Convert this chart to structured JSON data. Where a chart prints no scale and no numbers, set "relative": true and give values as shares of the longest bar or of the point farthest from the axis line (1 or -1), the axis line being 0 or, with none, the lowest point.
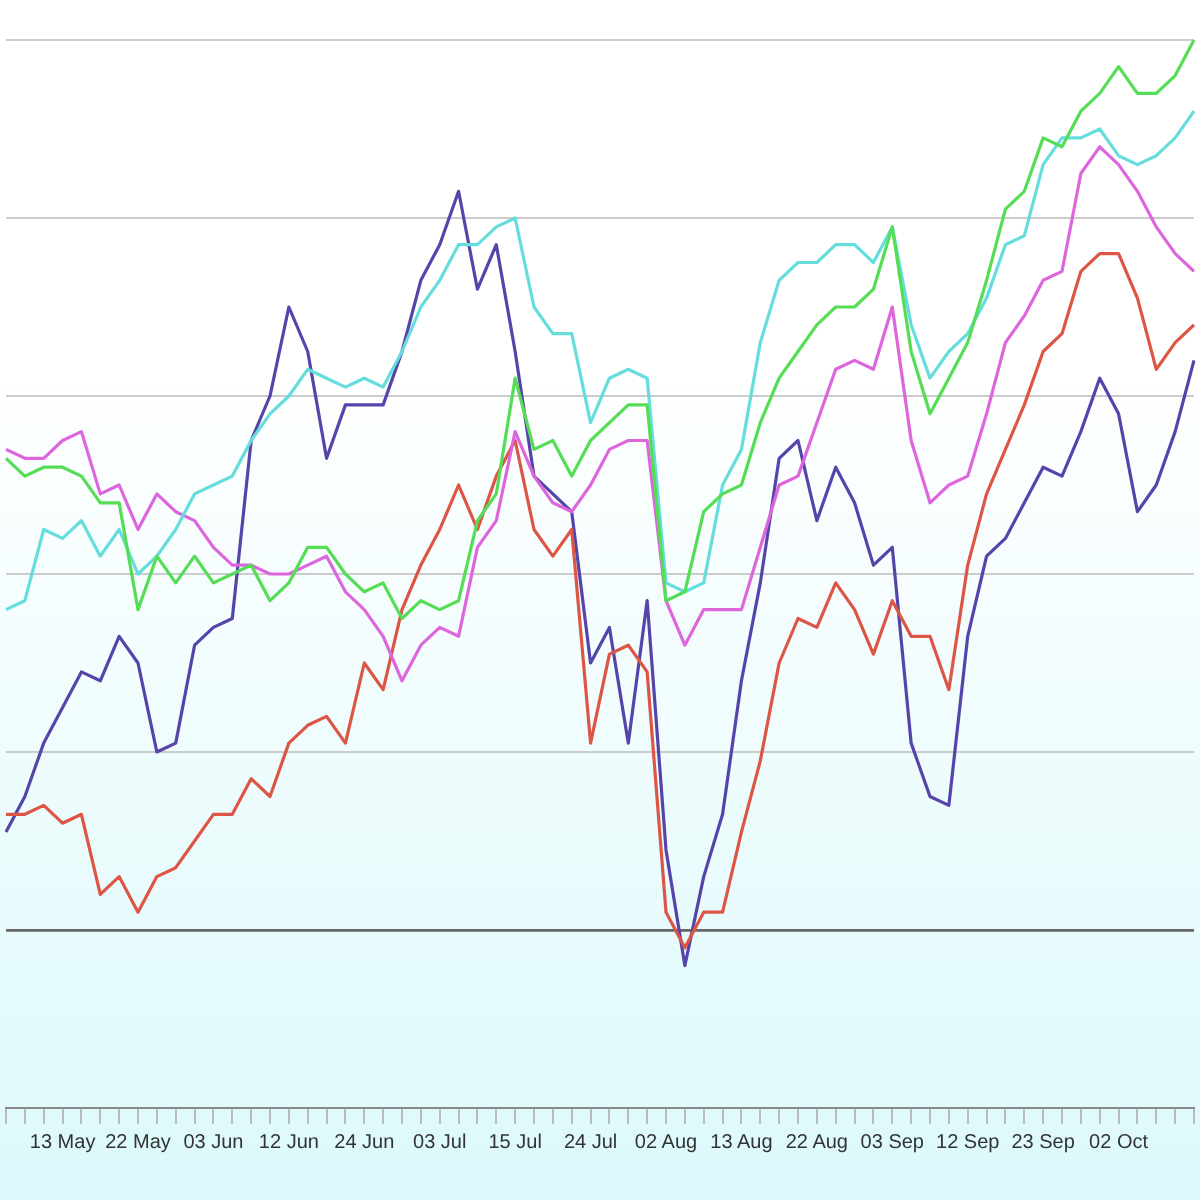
{
  "chart_data": {
    "type": "line",
    "relative": true,
    "grid": "y",
    "marker": "none",
    "categories": [
      null,
      null,
      null,
      "13 May",
      null,
      null,
      null,
      "22 May",
      null,
      null,
      null,
      "03 Jun",
      null,
      null,
      null,
      "12 Jun",
      null,
      null,
      null,
      "24 Jun",
      null,
      null,
      null,
      "03 Jul",
      null,
      null,
      null,
      "15 Jul",
      null,
      null,
      null,
      "24 Jul",
      null,
      null,
      null,
      "02 Aug",
      null,
      null,
      null,
      "13 Aug",
      null,
      null,
      null,
      "22 Aug",
      null,
      null,
      null,
      "03 Sep",
      null,
      null,
      null,
      "12 Sep",
      null,
      null,
      null,
      "23 Sep",
      null,
      null,
      null,
      "02 Oct",
      null,
      null,
      null,
      null
    ],
    "series": [
      {
        "color": "#55dd55",
        "values": [
          0.53,
          0.51,
          0.52,
          0.52,
          0.51,
          0.48,
          0.48,
          0.36,
          0.42,
          0.39,
          0.42,
          0.39,
          0.4,
          0.41,
          0.37,
          0.39,
          0.43,
          0.43,
          0.4,
          0.38,
          0.39,
          0.35,
          0.37,
          0.36,
          0.37,
          0.46,
          0.49,
          0.62,
          0.54,
          0.55,
          0.51,
          0.55,
          0.57,
          0.59,
          0.59,
          0.37,
          0.38,
          0.47,
          0.49,
          0.5,
          0.57,
          0.62,
          0.65,
          0.68,
          0.7,
          0.7,
          0.72,
          0.79,
          0.65,
          0.58,
          0.62,
          0.66,
          0.73,
          0.81,
          0.83,
          0.89,
          0.88,
          0.92,
          0.94,
          0.97,
          0.94,
          0.94,
          0.96,
          1
        ]
      },
      {
        "color": "#66dddd",
        "values": [
          0.36,
          0.37,
          0.45,
          0.44,
          0.46,
          0.42,
          0.45,
          0.4,
          0.42,
          0.45,
          0.49,
          0.5,
          0.51,
          0.55,
          0.58,
          0.6,
          0.63,
          0.62,
          0.61,
          0.62,
          0.61,
          0.65,
          0.7,
          0.73,
          0.77,
          0.77,
          0.79,
          0.8,
          0.7,
          0.67,
          0.67,
          0.57,
          0.62,
          0.63,
          0.62,
          0.39,
          0.38,
          0.39,
          0.5,
          0.54,
          0.66,
          0.73,
          0.75,
          0.75,
          0.77,
          0.77,
          0.75,
          0.79,
          0.68,
          0.62,
          0.65,
          0.67,
          0.71,
          0.77,
          0.78,
          0.86,
          0.89,
          0.89,
          0.9,
          0.87,
          0.86,
          0.87,
          0.89,
          0.92
        ]
      },
      {
        "color": "#dd66dd",
        "values": [
          0.54,
          0.53,
          0.53,
          0.55,
          0.56,
          0.49,
          0.5,
          0.45,
          0.49,
          0.47,
          0.46,
          0.43,
          0.41,
          0.41,
          0.4,
          0.4,
          0.41,
          0.42,
          0.38,
          0.36,
          0.33,
          0.28,
          0.32,
          0.34,
          0.33,
          0.43,
          0.46,
          0.56,
          0.51,
          0.48,
          0.47,
          0.5,
          0.54,
          0.55,
          0.55,
          0.37,
          0.32,
          0.36,
          0.36,
          0.36,
          0.43,
          0.5,
          0.51,
          0.57,
          0.63,
          0.64,
          0.63,
          0.7,
          0.55,
          0.48,
          0.5,
          0.51,
          0.58,
          0.66,
          0.69,
          0.73,
          0.74,
          0.85,
          0.88,
          0.86,
          0.83,
          0.79,
          0.76,
          0.74
        ]
      },
      {
        "color": "#dd5544",
        "values": [
          0.13,
          0.13,
          0.14,
          0.12,
          0.13,
          0.04,
          0.06,
          0.02,
          0.06,
          0.07,
          0.1,
          0.13,
          0.13,
          0.17,
          0.15,
          0.21,
          0.23,
          0.24,
          0.21,
          0.3,
          0.27,
          0.36,
          0.41,
          0.45,
          0.5,
          0.45,
          0.51,
          0.55,
          0.45,
          0.42,
          0.45,
          0.21,
          0.31,
          0.32,
          0.29,
          0.02,
          -0.02,
          0.02,
          0.02,
          0.11,
          0.19,
          0.3,
          0.35,
          0.34,
          0.39,
          0.36,
          0.31,
          0.37,
          0.33,
          0.33,
          0.27,
          0.41,
          0.49,
          0.54,
          0.59,
          0.65,
          0.67,
          0.74,
          0.76,
          0.76,
          0.71,
          0.63,
          0.66,
          0.68
        ]
      },
      {
        "color": "#5544aa",
        "values": [
          0.11,
          0.15,
          0.21,
          0.25,
          0.29,
          0.28,
          0.33,
          0.3,
          0.2,
          0.21,
          0.32,
          0.34,
          0.35,
          0.55,
          0.6,
          0.7,
          0.65,
          0.53,
          0.59,
          0.59,
          0.59,
          0.65,
          0.73,
          0.77,
          0.83,
          0.72,
          0.77,
          0.65,
          0.51,
          0.49,
          0.47,
          0.3,
          0.34,
          0.21,
          0.37,
          0.09,
          -0.04,
          0.06,
          0.13,
          0.28,
          0.39,
          0.53,
          0.55,
          0.46,
          0.52,
          0.48,
          0.41,
          0.43,
          0.21,
          0.15,
          0.14,
          0.33,
          0.42,
          0.44,
          0.48,
          0.52,
          0.51,
          0.56,
          0.62,
          0.58,
          0.47,
          0.5,
          0.56,
          0.64
        ]
      }
    ]
  }
}
